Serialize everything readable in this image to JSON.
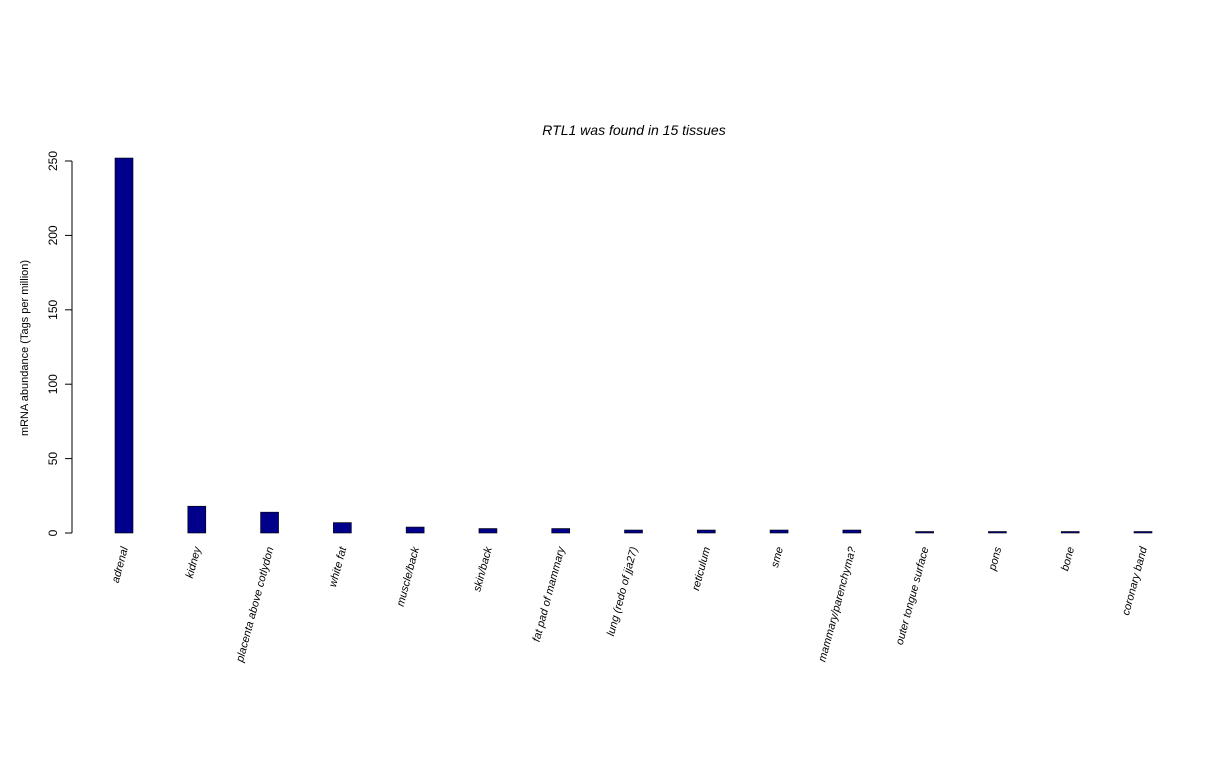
{
  "chart_data": {
    "type": "bar",
    "title": "RTL1  was found in  15  tissues",
    "xlabel": "",
    "ylabel": "mRNA abundance (Tags per million)",
    "ylim": [
      0,
      250
    ],
    "yticks": [
      "0",
      "50",
      "100",
      "150",
      "200",
      "250"
    ],
    "grid": false,
    "bar_color": "#00008B",
    "categories": [
      "adrenal",
      "kidney",
      "placenta above cotlydon",
      "white fat",
      "muscle/back",
      "skin/back",
      "fat pad of mammary",
      "lung (redo of jja27)",
      "reticulum",
      "sme",
      "mammary/parenchyma?",
      "outer tongue surface",
      "pons",
      "bone",
      "coronary band"
    ],
    "values": [
      252,
      18,
      14,
      7,
      4,
      3,
      3,
      2,
      2,
      2,
      2,
      1,
      1,
      1,
      1
    ]
  }
}
